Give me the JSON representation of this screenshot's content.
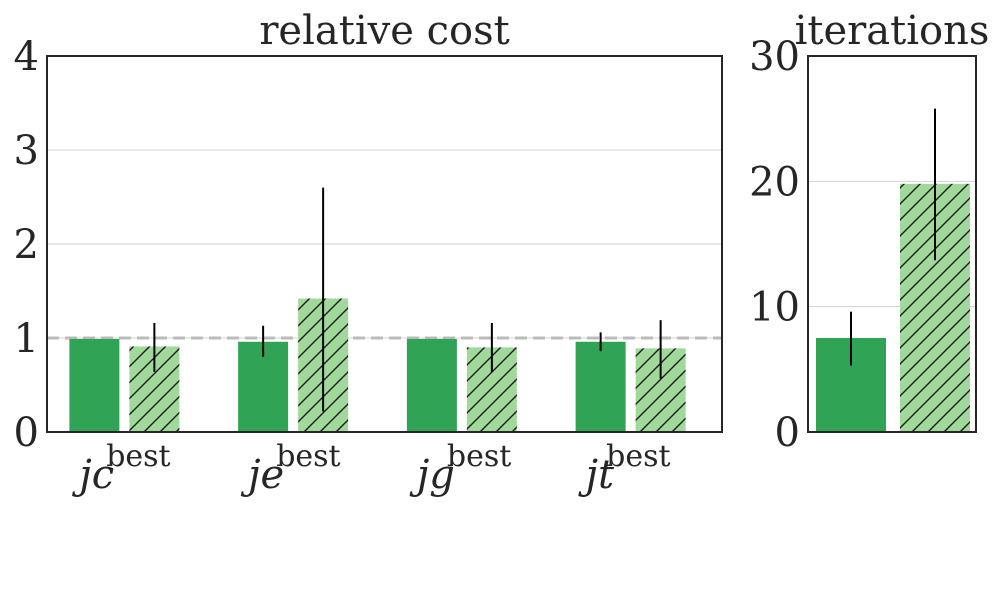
{
  "colors": {
    "solid": "#31a354",
    "hatched": "#a1d99b",
    "grid": "#d3d3d3",
    "axis": "#262626",
    "reference_line": "#bbbbbb",
    "error_bar": "#000000"
  },
  "chart_data": [
    {
      "type": "bar",
      "title": "relative cost",
      "categories": [
        {
          "base": "j",
          "sub": "c",
          "sup": "best"
        },
        {
          "base": "j",
          "sub": "e",
          "sup": "best"
        },
        {
          "base": "j",
          "sub": "g",
          "sup": "best"
        },
        {
          "base": "j",
          "sub": "t",
          "sup": "best"
        }
      ],
      "series": [
        {
          "style": "solid",
          "values": [
            0.99,
            0.96,
            0.99,
            0.96
          ],
          "err_low": [
            0.99,
            0.8,
            0.99,
            0.86
          ],
          "err_high": [
            0.99,
            1.13,
            0.99,
            1.06
          ]
        },
        {
          "style": "hatched",
          "values": [
            0.91,
            1.42,
            0.9,
            0.89
          ],
          "err_low": [
            0.64,
            0.22,
            0.64,
            0.57
          ],
          "err_high": [
            1.16,
            2.6,
            1.16,
            1.19
          ]
        }
      ],
      "ylim": [
        0,
        4
      ],
      "yticks": [
        "0",
        "1",
        "2",
        "3",
        "4"
      ],
      "reference_line": 1,
      "grid": true
    },
    {
      "type": "bar",
      "title": "iterations",
      "series": [
        {
          "style": "solid",
          "values": [
            7.5
          ],
          "err_low": [
            5.3
          ],
          "err_high": [
            9.6
          ]
        },
        {
          "style": "hatched",
          "values": [
            19.8
          ],
          "err_low": [
            13.7
          ],
          "err_high": [
            25.8
          ]
        }
      ],
      "ylim": [
        0,
        30
      ],
      "yticks": [
        "0",
        "10",
        "20",
        "30"
      ],
      "grid": true
    }
  ]
}
